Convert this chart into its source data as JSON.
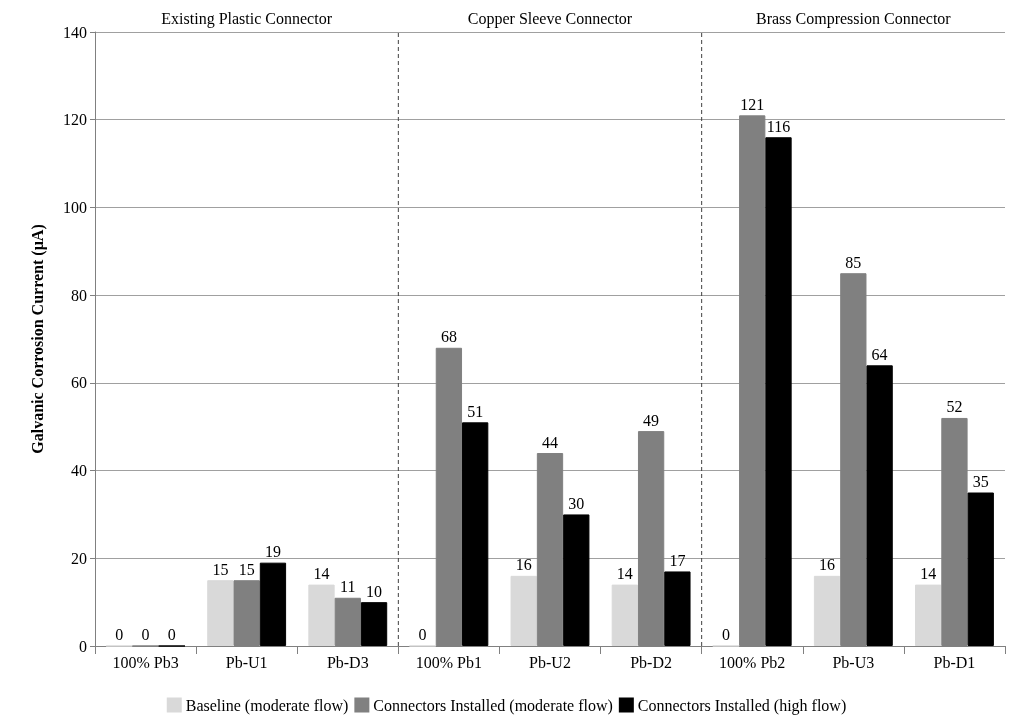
{
  "chart_data": {
    "type": "bar",
    "ylabel": "Galvanic Corrosion Current (µA)",
    "categories": [
      "100% Pb3",
      "Pb-U1",
      "Pb-D3",
      "100% Pb1",
      "Pb-U2",
      "Pb-D2",
      "100% Pb2",
      "Pb-U3",
      "Pb-D1"
    ],
    "series": [
      {
        "name": "Baseline (moderate flow)",
        "color": "#d9d9d9",
        "values": [
          0,
          15,
          14,
          0,
          16,
          14,
          0,
          16,
          14
        ]
      },
      {
        "name": "Connectors Installed (moderate flow)",
        "color": "#808080",
        "values": [
          0,
          15,
          11,
          68,
          44,
          49,
          121,
          85,
          52
        ]
      },
      {
        "name": "Connectors Installed (high flow)",
        "color": "#000000",
        "values": [
          0,
          19,
          10,
          51,
          30,
          17,
          116,
          64,
          35
        ]
      }
    ],
    "ylim": [
      0,
      140
    ],
    "yticks": [
      0,
      20,
      40,
      60,
      80,
      100,
      120,
      140
    ],
    "grid": "y",
    "legend": "bottom",
    "data_labels": true,
    "annotations": [
      "Existing Plastic Connector",
      "Copper Sleeve Connector",
      "Brass Compression Connector"
    ]
  }
}
